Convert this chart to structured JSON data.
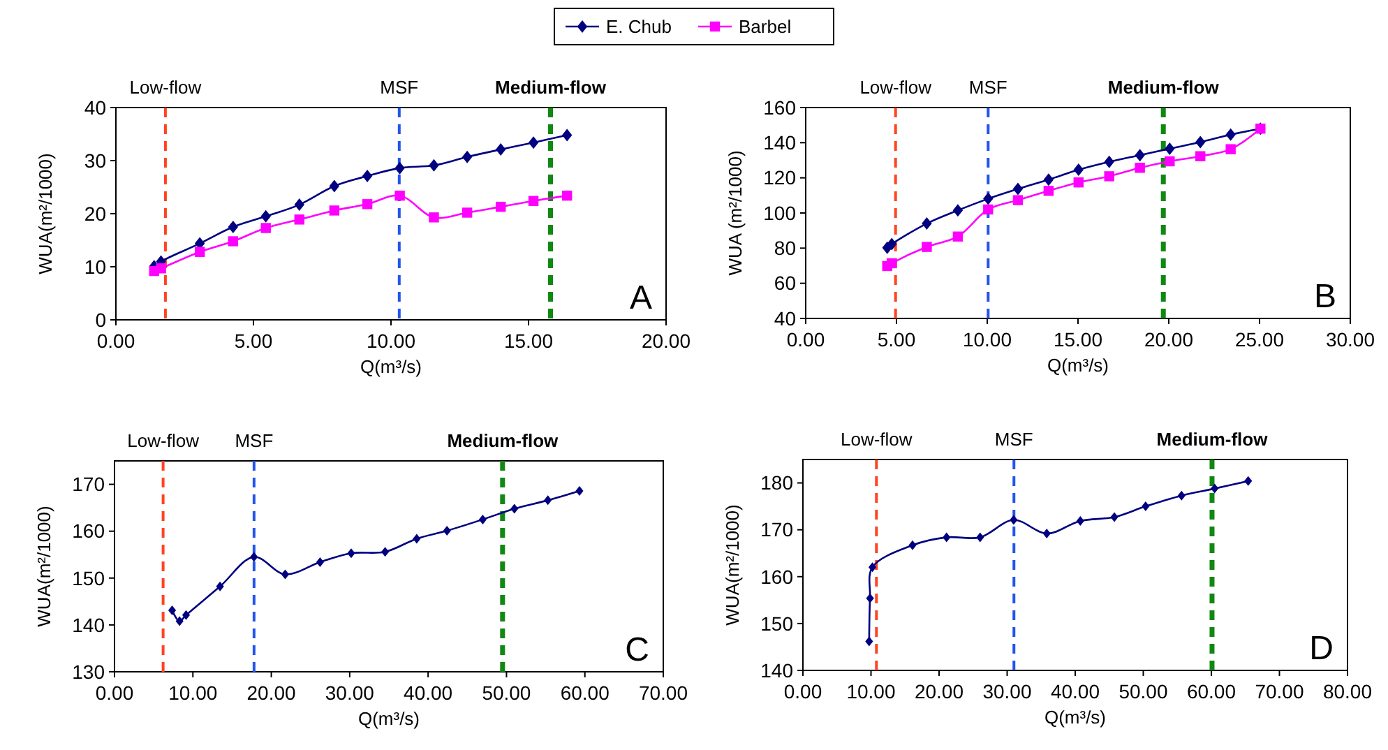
{
  "chart_data": [
    {
      "type": "line",
      "xlabel": "Q(m³/s)",
      "ylabel": "WUA(m²/1000)",
      "legend": "top",
      "xlim": [
        0,
        20
      ],
      "ylim": [
        0,
        40
      ],
      "xticks": [
        {
          "value": 0,
          "label": "0.00"
        },
        {
          "value": 5,
          "label": "5.00"
        },
        {
          "value": 10,
          "label": "10.00"
        },
        {
          "value": 15,
          "label": "15.00"
        },
        {
          "value": 20,
          "label": "20.00"
        }
      ],
      "yticks": [
        0,
        10,
        20,
        30,
        40
      ],
      "x": [
        1.39,
        1.64,
        3.05,
        4.26,
        5.45,
        6.67,
        7.94,
        9.14,
        10.32,
        11.56,
        12.77,
        13.99,
        15.18,
        16.4
      ],
      "series": [
        {
          "name": "E. Chub",
          "color": "#000080",
          "marker": "diamond",
          "values": [
            10.1,
            11.0,
            14.4,
            17.5,
            19.5,
            21.7,
            25.2,
            27.1,
            28.6,
            29.1,
            30.7,
            32.1,
            33.4,
            34.8
          ]
        },
        {
          "name": "Barbel",
          "color": "#ff00ff",
          "marker": "square",
          "values": [
            9.2,
            9.7,
            12.8,
            14.8,
            17.3,
            18.9,
            20.6,
            21.8,
            23.4,
            19.3,
            20.2,
            21.3,
            22.4,
            23.4
          ]
        }
      ],
      "ref_lines": [
        {
          "axis": "x",
          "value": 1.8,
          "label": "Low-flow",
          "color": "#ff4422",
          "line_style": "dashed"
        },
        {
          "axis": "x",
          "value": 10.3,
          "label": "MSF",
          "color": "#2255ee",
          "line_style": "dashed"
        },
        {
          "axis": "x",
          "value": 15.8,
          "label": "Medium-flow",
          "color": "#118811",
          "line_style": "dashed"
        }
      ],
      "annotations": [
        "A"
      ]
    },
    {
      "type": "line",
      "xlabel": "Q(m³/s)",
      "ylabel": "WUA (m²/1000)",
      "xlim": [
        0,
        30
      ],
      "ylim": [
        40,
        160
      ],
      "xticks": [
        {
          "value": 0,
          "label": "0.00"
        },
        {
          "value": 5,
          "label": "5.00"
        },
        {
          "value": 10,
          "label": "10.00"
        },
        {
          "value": 15,
          "label": "15.00"
        },
        {
          "value": 20,
          "label": "20.00"
        },
        {
          "value": 25,
          "label": "25.00"
        },
        {
          "value": 30,
          "label": "30.00"
        }
      ],
      "yticks": [
        40,
        60,
        80,
        100,
        120,
        140,
        160
      ],
      "x": [
        4.49,
        4.74,
        6.67,
        8.38,
        10.05,
        11.69,
        13.38,
        15.03,
        16.72,
        18.41,
        20.05,
        21.74,
        23.41,
        25.05
      ],
      "series": [
        {
          "color": "#000080",
          "marker": "diamond",
          "values": [
            80.2,
            82.3,
            94.0,
            101.5,
            108.1,
            113.7,
            119.0,
            124.6,
            129.1,
            132.9,
            136.6,
            140.3,
            144.6,
            148.0
          ]
        },
        {
          "color": "#ff00ff",
          "marker": "square",
          "values": [
            69.8,
            71.4,
            80.7,
            86.6,
            102.0,
            107.3,
            112.6,
            117.4,
            120.9,
            125.7,
            129.4,
            132.3,
            136.3,
            148.0
          ]
        }
      ],
      "ref_lines": [
        {
          "axis": "x",
          "value": 4.95,
          "label": "Low-flow",
          "color": "#ff4422",
          "line_style": "dashed"
        },
        {
          "axis": "x",
          "value": 10.05,
          "label": "MSF",
          "color": "#2255ee",
          "line_style": "dashed"
        },
        {
          "axis": "x",
          "value": 19.7,
          "label": "Medium-flow",
          "color": "#118811",
          "line_style": "dashed"
        }
      ],
      "annotations": [
        "B"
      ]
    },
    {
      "type": "line",
      "xlabel": "Q(m³/s)",
      "ylabel": "WUA(m²/1000)",
      "xlim": [
        0,
        70
      ],
      "ylim": [
        130,
        175
      ],
      "xticks": [
        {
          "value": 0,
          "label": "0.00"
        },
        {
          "value": 10,
          "label": "10.00"
        },
        {
          "value": 20,
          "label": "20.00"
        },
        {
          "value": 30,
          "label": "30.00"
        },
        {
          "value": 40,
          "label": "40.00"
        },
        {
          "value": 50,
          "label": "50.00"
        },
        {
          "value": 60,
          "label": "60.00"
        },
        {
          "value": 70,
          "label": "70.00"
        }
      ],
      "yticks": [
        130,
        140,
        150,
        160,
        170
      ],
      "x": [
        7.35,
        8.3,
        9.13,
        13.46,
        17.79,
        21.77,
        26.22,
        30.19,
        34.52,
        38.55,
        42.41,
        46.97,
        51.01,
        55.28,
        59.31
      ],
      "series": [
        {
          "color": "#000080",
          "marker": "diamond",
          "values": [
            143.1,
            140.8,
            142.1,
            148.2,
            154.5,
            150.8,
            153.4,
            155.3,
            155.6,
            158.4,
            160.1,
            162.5,
            164.8,
            166.6,
            168.6
          ]
        }
      ],
      "ref_lines": [
        {
          "axis": "x",
          "value": 6.2,
          "label": "Low-flow",
          "color": "#ff4422",
          "line_style": "dashed"
        },
        {
          "axis": "x",
          "value": 17.8,
          "label": "MSF",
          "color": "#2255ee",
          "line_style": "dashed"
        },
        {
          "axis": "x",
          "value": 49.5,
          "label": "Medium-flow",
          "color": "#118811",
          "line_style": "dashed"
        }
      ],
      "annotations": [
        "C"
      ]
    },
    {
      "type": "line",
      "xlabel": "Q(m³/s)",
      "ylabel": "WUA(m²/1000)",
      "xlim": [
        0,
        80
      ],
      "ylim": [
        140,
        185
      ],
      "xticks": [
        {
          "value": 0,
          "label": "0.00"
        },
        {
          "value": 10,
          "label": "10.00"
        },
        {
          "value": 20,
          "label": "20.00"
        },
        {
          "value": 30,
          "label": "30.00"
        },
        {
          "value": 40,
          "label": "40.00"
        },
        {
          "value": 50,
          "label": "50.00"
        },
        {
          "value": 60,
          "label": "60.00"
        },
        {
          "value": 70,
          "label": "70.00"
        },
        {
          "value": 80,
          "label": "80.00"
        }
      ],
      "yticks": [
        140,
        150,
        160,
        170,
        180
      ],
      "x": [
        9.73,
        9.86,
        10.21,
        16.1,
        21.1,
        26.03,
        30.96,
        35.82,
        40.75,
        45.75,
        50.34,
        55.62,
        60.48,
        65.41
      ],
      "series": [
        {
          "color": "#000080",
          "marker": "diamond",
          "values": [
            146.2,
            155.4,
            162.0,
            166.7,
            168.4,
            168.4,
            172.1,
            169.2,
            171.9,
            172.7,
            175.0,
            177.3,
            178.8,
            180.4
          ]
        }
      ],
      "ref_lines": [
        {
          "axis": "x",
          "value": 10.8,
          "label": "Low-flow",
          "color": "#ff4422",
          "line_style": "dashed"
        },
        {
          "axis": "x",
          "value": 31.0,
          "label": "MSF",
          "color": "#2255ee",
          "line_style": "dashed"
        },
        {
          "axis": "x",
          "value": 60.1,
          "label": "Medium-flow",
          "color": "#118811",
          "line_style": "dashed"
        }
      ],
      "annotations": [
        "D"
      ]
    }
  ]
}
